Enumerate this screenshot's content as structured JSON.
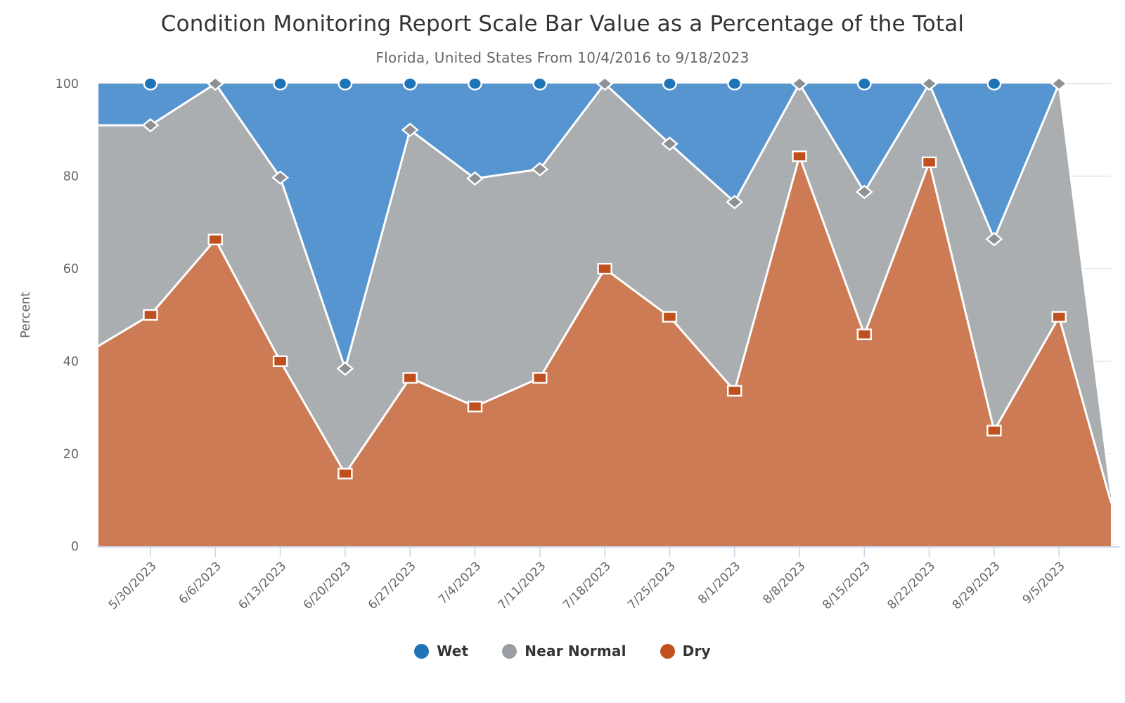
{
  "header": {
    "title": "Condition Monitoring Report Scale Bar Value as a Percentage of the Total",
    "subtitle": "Florida, United States From 10/4/2016 to 9/18/2023"
  },
  "chart_data": {
    "type": "area",
    "stacking": "percent",
    "title": "Condition Monitoring Report Scale Bar Value as a Percentage of the Total",
    "subtitle": "Florida, United States From 10/4/2016 to 9/18/2023",
    "xlabel": "",
    "ylabel": "Percent",
    "ylim": [
      0,
      100
    ],
    "yticks": [
      0,
      20,
      40,
      60,
      80,
      100
    ],
    "grid": true,
    "legend_position": "bottom",
    "categories": [
      "5/30/2023",
      "6/6/2023",
      "6/13/2023",
      "6/20/2023",
      "6/27/2023",
      "7/4/2023",
      "7/11/2023",
      "7/18/2023",
      "7/25/2023",
      "8/1/2023",
      "8/8/2023",
      "8/15/2023",
      "8/22/2023",
      "8/29/2023",
      "9/5/2023"
    ],
    "series": [
      {
        "name": "Wet",
        "marker": "circle",
        "fill": "#5795d0",
        "marker_color": "#1f74b8",
        "values": [
          9.0,
          0,
          20.3,
          61.6,
          10.0,
          20.5,
          18.5,
          0,
          13.0,
          25.6,
          0,
          23.4,
          0,
          33.6,
          0
        ]
      },
      {
        "name": "Near Normal",
        "marker": "diamond",
        "fill": "#abaeb1",
        "marker_color": "#8e9194",
        "values": [
          41.0,
          33.7,
          39.7,
          22.7,
          53.6,
          49.3,
          45.1,
          40.0,
          37.4,
          40.8,
          15.7,
          30.8,
          17.0,
          41.4,
          50.4
        ]
      },
      {
        "name": "Dry",
        "marker": "square",
        "fill": "#cd7b55",
        "marker_color": "#c0511f",
        "values": [
          50.0,
          66.3,
          40.0,
          15.7,
          36.4,
          30.2,
          36.4,
          60.0,
          49.6,
          33.6,
          84.3,
          45.8,
          83.0,
          25.0,
          49.6
        ]
      }
    ],
    "edge_points": {
      "left": {
        "wet": 9.0,
        "near_normal": 47.7,
        "dry": 43.3
      },
      "right": {
        "wet": 0.0,
        "near_normal": 2.0,
        "dry": 9.5
      }
    },
    "legend": [
      {
        "label": "Wet",
        "color": "#1f74b8"
      },
      {
        "label": "Near Normal",
        "color": "#9a9da1"
      },
      {
        "label": "Dry",
        "color": "#c0511f"
      }
    ],
    "colors": {
      "gridline": "#e8e8e8",
      "axis_line": "#ccd6eb",
      "boundary_line": "#ffffff",
      "title_text": "#333333",
      "axis_text": "#666666"
    }
  }
}
